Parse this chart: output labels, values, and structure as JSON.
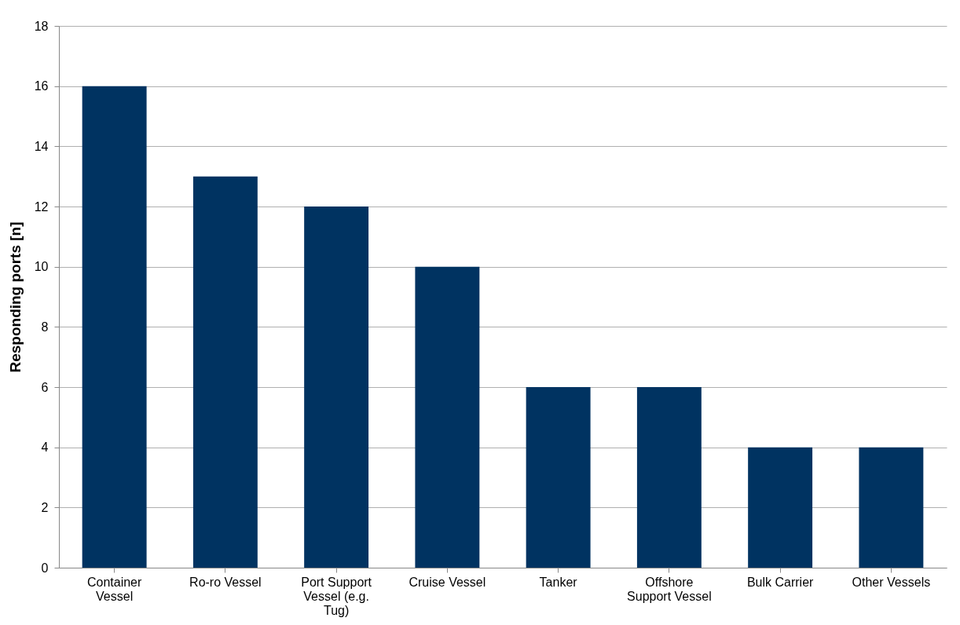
{
  "chart_data": {
    "type": "bar",
    "ylabel": "Responding ports [n]",
    "categories": [
      "Container Vessel",
      "Ro-ro Vessel",
      "Port Support Vessel (e.g. Tug)",
      "Cruise Vessel",
      "Tanker",
      "Offshore Support Vessel",
      "Bulk Carrier",
      "Other Vessels"
    ],
    "values": [
      16,
      13,
      12,
      10,
      6,
      6,
      4,
      4
    ],
    "color": "#003361",
    "ylim": [
      0,
      18
    ],
    "yticks": [
      0,
      2,
      4,
      6,
      8,
      10,
      12,
      14,
      16,
      18
    ],
    "grid": "y"
  }
}
